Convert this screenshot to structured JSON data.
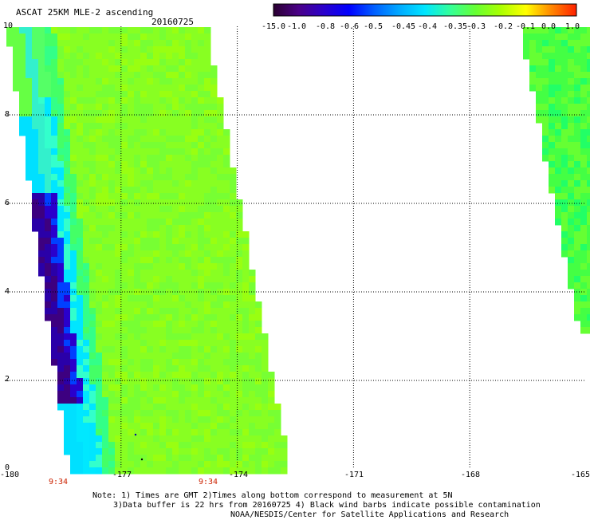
{
  "header": {
    "title": "ASCAT 25KM MLE-2 ascending",
    "date": "20160725"
  },
  "colorbar": {
    "labels": [
      "-15.0",
      "-1.0",
      "-0.8",
      "-0.6",
      "-0.5",
      "-0.45",
      "-0.4",
      "-0.35",
      "-0.3",
      "-0.2",
      "-0.1",
      "0.0",
      "1.0"
    ],
    "colors": [
      "#2a0030",
      "#4a0088",
      "#2a00cc",
      "#0000ff",
      "#0060ff",
      "#00aaff",
      "#00e6ff",
      "#33ff99",
      "#66ff33",
      "#aaff00",
      "#ffff00",
      "#ff8800",
      "#ff2000"
    ]
  },
  "map": {
    "x_ticks": [
      "-180",
      "-177",
      "-174",
      "-171",
      "-168",
      "-165"
    ],
    "y_ticks": [
      "0",
      "2",
      "4",
      "6",
      "8",
      "10"
    ],
    "time_labels": [
      "9:34",
      "9:34"
    ],
    "xlim": [
      -180,
      -165
    ],
    "ylim": [
      0,
      10
    ]
  },
  "notes": {
    "line1": "Note: 1) Times are GMT 2)Times along bottom correspond to measurement at 5N",
    "line2": "3)Data buffer is 22 hrs from 20160725 4) Black wind barbs indicate possible contamination",
    "line3": "NOAA/NESDIS/Center for Satellite Applications and Research"
  }
}
